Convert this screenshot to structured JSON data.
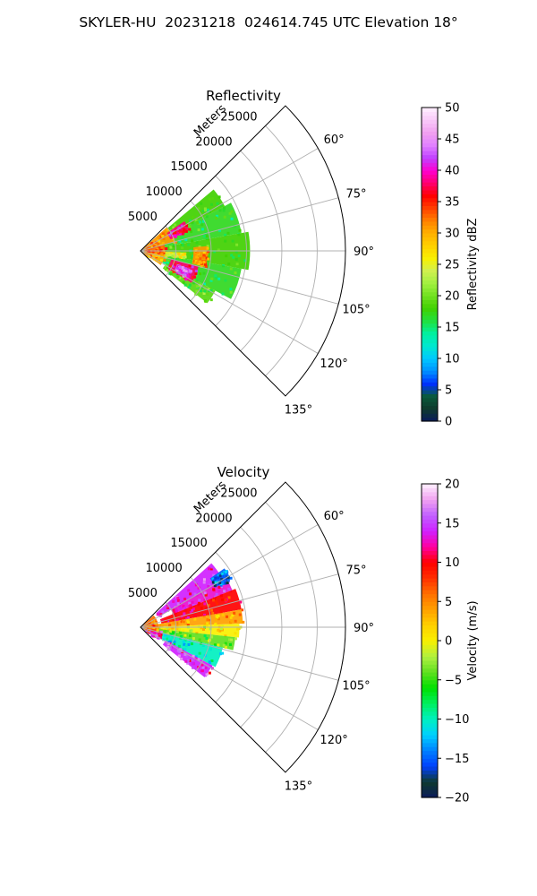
{
  "figure": {
    "title": "SKYLER-HU  20231218  024614.745 UTC Elevation 18°"
  },
  "chart_data": [
    {
      "type": "heatmap",
      "subtype": "polar-sector",
      "title": "Reflectivity",
      "range_axis_label": "Meters",
      "range_ticks": [
        5000,
        10000,
        15000,
        20000,
        25000
      ],
      "range_tick_labels": [
        "5000",
        "10000",
        "15000",
        "20000",
        "25000"
      ],
      "range_max": 29000,
      "azimuth_range": [
        45,
        135
      ],
      "azimuth_ticks": [
        60,
        75,
        90,
        105,
        120,
        135
      ],
      "azimuth_tick_labels": [
        "60°",
        "75°",
        "90°",
        "105°",
        "120°",
        "135°"
      ],
      "grid": true,
      "colorbar": {
        "label": "Reflectivity dBZ",
        "min": 0,
        "max": 50,
        "ticks": [
          0,
          5,
          10,
          15,
          20,
          25,
          30,
          35,
          40,
          45,
          50
        ],
        "tick_labels": [
          "0",
          "5",
          "10",
          "15",
          "20",
          "25",
          "30",
          "35",
          "40",
          "45",
          "50"
        ],
        "stops": [
          [
            0,
            "#0a1a5c"
          ],
          [
            2,
            "#0f3a2c"
          ],
          [
            4,
            "#0a5a3a"
          ],
          [
            6,
            "#0030ff"
          ],
          [
            8,
            "#0090ff"
          ],
          [
            10,
            "#00c8ff"
          ],
          [
            12,
            "#00e8d0"
          ],
          [
            14,
            "#00f0a0"
          ],
          [
            16,
            "#20e040"
          ],
          [
            18,
            "#40d000"
          ],
          [
            20,
            "#70e020"
          ],
          [
            22,
            "#a0f040"
          ],
          [
            24,
            "#d0f050"
          ],
          [
            26,
            "#f8f000"
          ],
          [
            28,
            "#ffd000"
          ],
          [
            30,
            "#ffb000"
          ],
          [
            32,
            "#ff8000"
          ],
          [
            34,
            "#ff4000"
          ],
          [
            36,
            "#ff0000"
          ],
          [
            38,
            "#ff0070"
          ],
          [
            40,
            "#ff00d0"
          ],
          [
            42,
            "#c040ff"
          ],
          [
            44,
            "#e080ff"
          ],
          [
            46,
            "#f0a0f0"
          ],
          [
            48,
            "#f8c8f8"
          ],
          [
            50,
            "#fff0ff"
          ]
        ]
      },
      "data_extent_m": 15500,
      "cells": [
        {
          "az": [
            50,
            62
          ],
          "r": [
            3000,
            13500
          ],
          "value": 18
        },
        {
          "az": [
            62,
            80
          ],
          "r": [
            3000,
            14500
          ],
          "value": 17
        },
        {
          "az": [
            80,
            100
          ],
          "r": [
            2500,
            15500
          ],
          "value": 18
        },
        {
          "az": [
            100,
            118
          ],
          "r": [
            2500,
            14500
          ],
          "value": 17
        },
        {
          "az": [
            118,
            128
          ],
          "r": [
            4000,
            12000
          ],
          "value": 19
        },
        {
          "az": [
            48,
            75
          ],
          "r": [
            0,
            5000
          ],
          "value": 31
        },
        {
          "az": [
            75,
            100
          ],
          "r": [
            0,
            3500
          ],
          "value": 33
        },
        {
          "az": [
            100,
            125
          ],
          "r": [
            0,
            3500
          ],
          "value": 30
        },
        {
          "az": [
            56,
            66
          ],
          "r": [
            4500,
            7500
          ],
          "value": 38
        },
        {
          "az": [
            105,
            122
          ],
          "r": [
            4500,
            8500
          ],
          "value": 38
        },
        {
          "az": [
            110,
            120
          ],
          "r": [
            5500,
            7500
          ],
          "value": 43
        },
        {
          "az": [
            86,
            104
          ],
          "r": [
            7500,
            9500
          ],
          "value": 31
        },
        {
          "az": [
            92,
            98
          ],
          "r": [
            3500,
            6500
          ],
          "value": 25
        }
      ]
    },
    {
      "type": "heatmap",
      "subtype": "polar-sector",
      "title": "Velocity",
      "range_axis_label": "Meters",
      "range_ticks": [
        5000,
        10000,
        15000,
        20000,
        25000
      ],
      "range_tick_labels": [
        "5000",
        "10000",
        "15000",
        "20000",
        "25000"
      ],
      "range_max": 29000,
      "azimuth_range": [
        45,
        135
      ],
      "azimuth_ticks": [
        60,
        75,
        90,
        105,
        120,
        135
      ],
      "azimuth_tick_labels": [
        "60°",
        "75°",
        "90°",
        "105°",
        "120°",
        "135°"
      ],
      "grid": true,
      "colorbar": {
        "label": "Velocity (m/s)",
        "min": -20,
        "max": 20,
        "ticks": [
          -20,
          -15,
          -10,
          -5,
          0,
          5,
          10,
          15,
          20
        ],
        "tick_labels": [
          "−20",
          "−15",
          "−10",
          "−5",
          "0",
          "5",
          "10",
          "15",
          "20"
        ],
        "stops": [
          [
            -20,
            "#0a1a5c"
          ],
          [
            -18,
            "#0f3a2c"
          ],
          [
            -16,
            "#0040ff"
          ],
          [
            -14,
            "#0080ff"
          ],
          [
            -12,
            "#00d0ff"
          ],
          [
            -10,
            "#00f0c0"
          ],
          [
            -8,
            "#00f060"
          ],
          [
            -6,
            "#00e000"
          ],
          [
            -4,
            "#60e020"
          ],
          [
            -2,
            "#b0f040"
          ],
          [
            0,
            "#f8f000"
          ],
          [
            2,
            "#ffd000"
          ],
          [
            4,
            "#ffa000"
          ],
          [
            6,
            "#ff7000"
          ],
          [
            8,
            "#ff3000"
          ],
          [
            10,
            "#ff0000"
          ],
          [
            12,
            "#ff00a0"
          ],
          [
            14,
            "#d020ff"
          ],
          [
            16,
            "#c060ff"
          ],
          [
            18,
            "#f0a0f0"
          ],
          [
            20,
            "#fff0ff"
          ]
        ]
      },
      "data_extent_m": 15500,
      "cells": [
        {
          "az": [
            48,
            60
          ],
          "r": [
            3000,
            13500
          ],
          "value": 14
        },
        {
          "az": [
            60,
            68
          ],
          "r": [
            5000,
            14000
          ],
          "value": 13
        },
        {
          "az": [
            68,
            80
          ],
          "r": [
            3000,
            14500
          ],
          "value": 10
        },
        {
          "az": [
            55,
            62
          ],
          "r": [
            12000,
            14500
          ],
          "value": -15
        },
        {
          "az": [
            80,
            88
          ],
          "r": [
            2000,
            14500
          ],
          "value": 4
        },
        {
          "az": [
            88,
            96
          ],
          "r": [
            2000,
            14000
          ],
          "value": 0
        },
        {
          "az": [
            96,
            104
          ],
          "r": [
            2000,
            13500
          ],
          "value": -4
        },
        {
          "az": [
            104,
            118
          ],
          "r": [
            3000,
            12000
          ],
          "value": -10
        },
        {
          "az": [
            118,
            128
          ],
          "r": [
            4000,
            11500
          ],
          "value": 14
        },
        {
          "az": [
            100,
            125
          ],
          "r": [
            0,
            3000
          ],
          "value": 13
        },
        {
          "az": [
            48,
            100
          ],
          "r": [
            0,
            2500
          ],
          "value": 6
        }
      ]
    }
  ]
}
